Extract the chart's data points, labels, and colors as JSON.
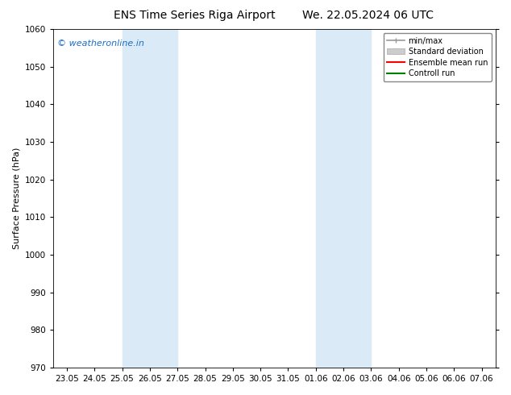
{
  "title_left": "ENS Time Series Riga Airport",
  "title_right": "We. 22.05.2024 06 UTC",
  "ylabel": "Surface Pressure (hPa)",
  "ylim": [
    970,
    1060
  ],
  "yticks": [
    970,
    980,
    990,
    1000,
    1010,
    1020,
    1030,
    1040,
    1050,
    1060
  ],
  "xtick_labels": [
    "23.05",
    "24.05",
    "25.05",
    "26.05",
    "27.05",
    "28.05",
    "29.05",
    "30.05",
    "31.05",
    "01.06",
    "02.06",
    "03.06",
    "04.06",
    "05.06",
    "06.06",
    "07.06"
  ],
  "watermark": "© weatheronline.in",
  "watermark_color": "#1a6dcc",
  "background_color": "#ffffff",
  "plot_bg_color": "#ffffff",
  "shaded_regions": [
    {
      "xstart": 2.0,
      "xend": 4.0,
      "color": "#daeaf6"
    },
    {
      "xstart": 9.0,
      "xend": 11.0,
      "color": "#daeaf6"
    }
  ],
  "legend_items": [
    {
      "label": "min/max",
      "color": "#999999",
      "lw": 1.5
    },
    {
      "label": "Standard deviation",
      "color": "#cccccc",
      "lw": 8
    },
    {
      "label": "Ensemble mean run",
      "color": "#ff0000",
      "lw": 1.5
    },
    {
      "label": "Controll run",
      "color": "#008000",
      "lw": 1.5
    }
  ],
  "title_fontsize": 10,
  "axis_label_fontsize": 8,
  "tick_fontsize": 7.5,
  "watermark_fontsize": 8,
  "legend_fontsize": 7
}
